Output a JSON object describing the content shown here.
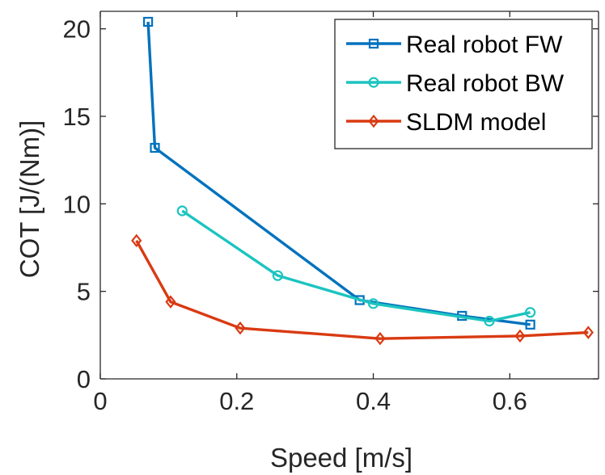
{
  "chart_data": {
    "type": "line",
    "xlabel": "Speed [m/s]",
    "ylabel": "COT [J/(Nm)]",
    "xlim": [
      0,
      0.73
    ],
    "ylim": [
      0,
      21
    ],
    "xticks": [
      0,
      0.2,
      0.4,
      0.6
    ],
    "xtick_labels": [
      "0",
      "0.2",
      "0.4",
      "0.6"
    ],
    "yticks": [
      0,
      5,
      10,
      15,
      20
    ],
    "ytick_labels": [
      "0",
      "5",
      "10",
      "15",
      "20"
    ],
    "grid": false,
    "legend_position": "top-right",
    "series": [
      {
        "name": "Real robot FW",
        "color": "#0072BD",
        "marker": "square",
        "x": [
          0.07,
          0.08,
          0.38,
          0.53,
          0.63
        ],
        "y": [
          20.4,
          13.2,
          4.5,
          3.6,
          3.1
        ]
      },
      {
        "name": "Real robot BW",
        "color": "#1CC4C0",
        "marker": "circle",
        "x": [
          0.12,
          0.26,
          0.4,
          0.57,
          0.63
        ],
        "y": [
          9.6,
          5.9,
          4.3,
          3.3,
          3.8
        ]
      },
      {
        "name": "SLDM model",
        "color": "#D93A12",
        "marker": "diamond",
        "x": [
          0.053,
          0.103,
          0.205,
          0.41,
          0.615,
          0.715
        ],
        "y": [
          7.9,
          4.4,
          2.9,
          2.3,
          2.45,
          2.65
        ]
      }
    ]
  }
}
